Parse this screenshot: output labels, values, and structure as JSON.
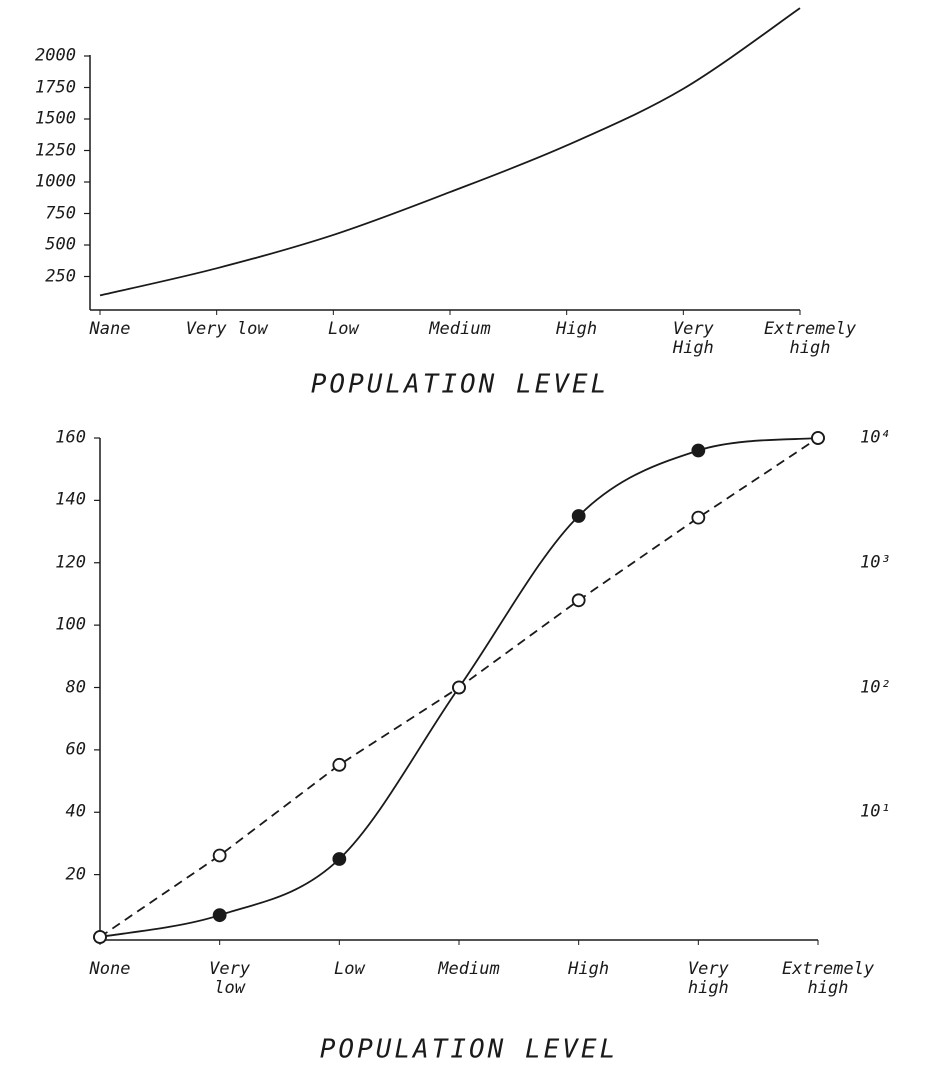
{
  "chart_data": [
    {
      "type": "line",
      "categories": [
        "Nane",
        "Very low",
        "Low",
        "Medium",
        "High",
        "Very\nHigh",
        "Extremely\nhigh"
      ],
      "series": [
        {
          "color": "#1a1a1a",
          "values": [
            100,
            315,
            580,
            920,
            1290,
            1740,
            2380
          ]
        }
      ],
      "ylim": [
        0,
        2400
      ],
      "yticks": [
        250,
        500,
        750,
        1000,
        1250,
        1500,
        1750,
        2000
      ],
      "xlabel": "POPULATION LEVEL"
    },
    {
      "type": "line",
      "categories": [
        "None",
        "Very\nlow",
        "Low",
        "Medium",
        "High",
        "Very\nhigh",
        "Extremely\nhigh"
      ],
      "series": [
        {
          "color": "#1a1a1a",
          "marker": "filled",
          "dashed": false,
          "values": [
            0,
            7,
            25,
            80,
            135,
            156,
            160
          ]
        },
        {
          "color": "#1a1a1a",
          "marker": "open",
          "dashed": true,
          "axis": "y2",
          "values": [
            1,
            4.5,
            24,
            100,
            500,
            2300,
            10000
          ]
        }
      ],
      "ylim": [
        0,
        160
      ],
      "yticks": [
        20,
        40,
        60,
        80,
        100,
        120,
        140,
        160
      ],
      "y2lim": [
        1,
        10000
      ],
      "y2log": true,
      "y2ticks": [
        {
          "value": 10,
          "label": "10¹"
        },
        {
          "value": 100,
          "label": "10²"
        },
        {
          "value": 1000,
          "label": "10³"
        },
        {
          "value": 10000,
          "label": "10⁴"
        }
      ],
      "xlabel": "POPULATION LEVEL"
    }
  ]
}
